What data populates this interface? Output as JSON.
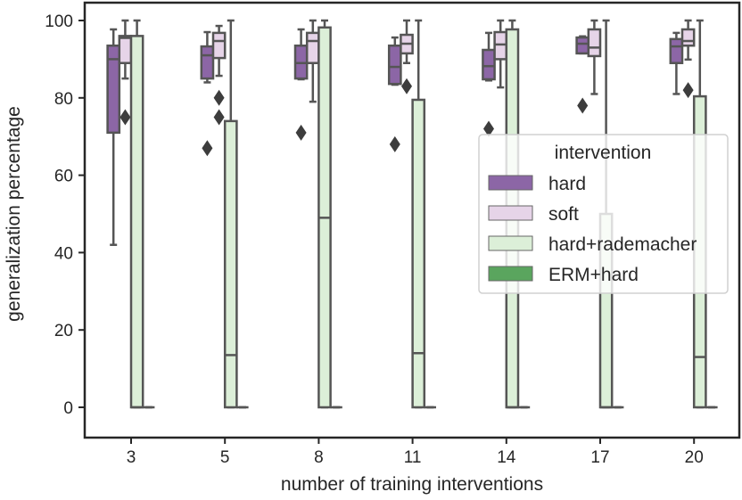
{
  "chart_data": {
    "type": "box",
    "xlabel": "number of training interventions",
    "ylabel": "generalization percentage",
    "ylim": [
      0,
      100
    ],
    "yticks": [
      0,
      20,
      40,
      60,
      80,
      100
    ],
    "categories": [
      "3",
      "5",
      "8",
      "11",
      "14",
      "17",
      "20"
    ],
    "legend": {
      "title": "intervention",
      "placement": "center-right"
    },
    "grid": false,
    "series": [
      {
        "name": "hard",
        "color": "#8c66a6",
        "boxes": [
          {
            "low": 42,
            "q1": 71,
            "median": 90,
            "q3": 93.5,
            "high": 97.7,
            "outliers": []
          },
          {
            "low": 84,
            "q1": 85,
            "median": 91,
            "q3": 93.3,
            "high": 97,
            "outliers": [
              67
            ]
          },
          {
            "low": 84.8,
            "q1": 85,
            "median": 89,
            "q3": 93.5,
            "high": 97.7,
            "outliers": [
              71
            ]
          },
          {
            "low": 83.4,
            "q1": 83.6,
            "median": 88,
            "q3": 93.5,
            "high": 95.6,
            "outliers": [
              68
            ]
          },
          {
            "low": 84.5,
            "q1": 84.8,
            "median": 88.2,
            "q3": 92.4,
            "high": 96.8,
            "outliers": [
              72
            ]
          },
          {
            "low": 91.5,
            "q1": 91.5,
            "median": 94,
            "q3": 95.6,
            "high": 95.9,
            "outliers": [
              78
            ]
          },
          {
            "low": 81,
            "q1": 89,
            "median": 93.3,
            "q3": 95.2,
            "high": 96.8,
            "outliers": []
          }
        ]
      },
      {
        "name": "soft",
        "color": "#e6d4e8",
        "boxes": [
          {
            "low": 85,
            "q1": 89,
            "median": 95.5,
            "q3": 96,
            "high": 100,
            "outliers": [
              75
            ]
          },
          {
            "low": 85.7,
            "q1": 90.3,
            "median": 94.7,
            "q3": 96.8,
            "high": 98.6,
            "outliers": [
              80,
              75
            ]
          },
          {
            "low": 79,
            "q1": 89,
            "median": 94.7,
            "q3": 96.8,
            "high": 100,
            "outliers": []
          },
          {
            "low": 89,
            "q1": 91.5,
            "median": 94,
            "q3": 96.3,
            "high": 100,
            "outliers": [
              83
            ]
          },
          {
            "low": 82.7,
            "q1": 90,
            "median": 93.8,
            "q3": 97,
            "high": 100,
            "outliers": []
          },
          {
            "low": 81,
            "q1": 90.8,
            "median": 93,
            "q3": 97.7,
            "high": 100,
            "outliers": []
          },
          {
            "low": 89.9,
            "q1": 93.5,
            "median": 94.7,
            "q3": 97.7,
            "high": 100,
            "outliers": [
              82
            ]
          }
        ]
      },
      {
        "name": "hard+rademacher",
        "color": "#dcefd8",
        "boxes": [
          {
            "low": 0,
            "q1": 0,
            "median": 0,
            "q3": 96,
            "high": 100,
            "outliers": []
          },
          {
            "low": 0,
            "q1": 0,
            "median": 13.5,
            "q3": 74,
            "high": 100,
            "outliers": []
          },
          {
            "low": 0,
            "q1": 0,
            "median": 49,
            "q3": 98.2,
            "high": 100,
            "outliers": []
          },
          {
            "low": 0,
            "q1": 0,
            "median": 14,
            "q3": 79.5,
            "high": 100,
            "outliers": []
          },
          {
            "low": 0,
            "q1": 0,
            "median": 0,
            "q3": 97.7,
            "high": 100,
            "outliers": []
          },
          {
            "low": 0,
            "q1": 0,
            "median": 0,
            "q3": 50,
            "high": 100,
            "outliers": []
          },
          {
            "low": 0,
            "q1": 0,
            "median": 13,
            "q3": 80.4,
            "high": 100,
            "outliers": []
          }
        ]
      },
      {
        "name": "ERM+hard",
        "color": "#5aa55e",
        "boxes": [
          {
            "low": 0,
            "q1": 0,
            "median": 0,
            "q3": 0,
            "high": 0,
            "outliers": []
          },
          {
            "low": 0,
            "q1": 0,
            "median": 0,
            "q3": 0,
            "high": 0,
            "outliers": []
          },
          {
            "low": 0,
            "q1": 0,
            "median": 0,
            "q3": 0,
            "high": 0,
            "outliers": []
          },
          {
            "low": 0,
            "q1": 0,
            "median": 0,
            "q3": 0,
            "high": 0,
            "outliers": []
          },
          {
            "low": 0,
            "q1": 0,
            "median": 0,
            "q3": 0,
            "high": 0,
            "outliers": []
          },
          {
            "low": 0,
            "q1": 0,
            "median": 0,
            "q3": 0,
            "high": 0,
            "outliers": []
          },
          {
            "low": 0,
            "q1": 0,
            "median": 0,
            "q3": 0,
            "high": 0,
            "outliers": []
          }
        ]
      }
    ]
  }
}
